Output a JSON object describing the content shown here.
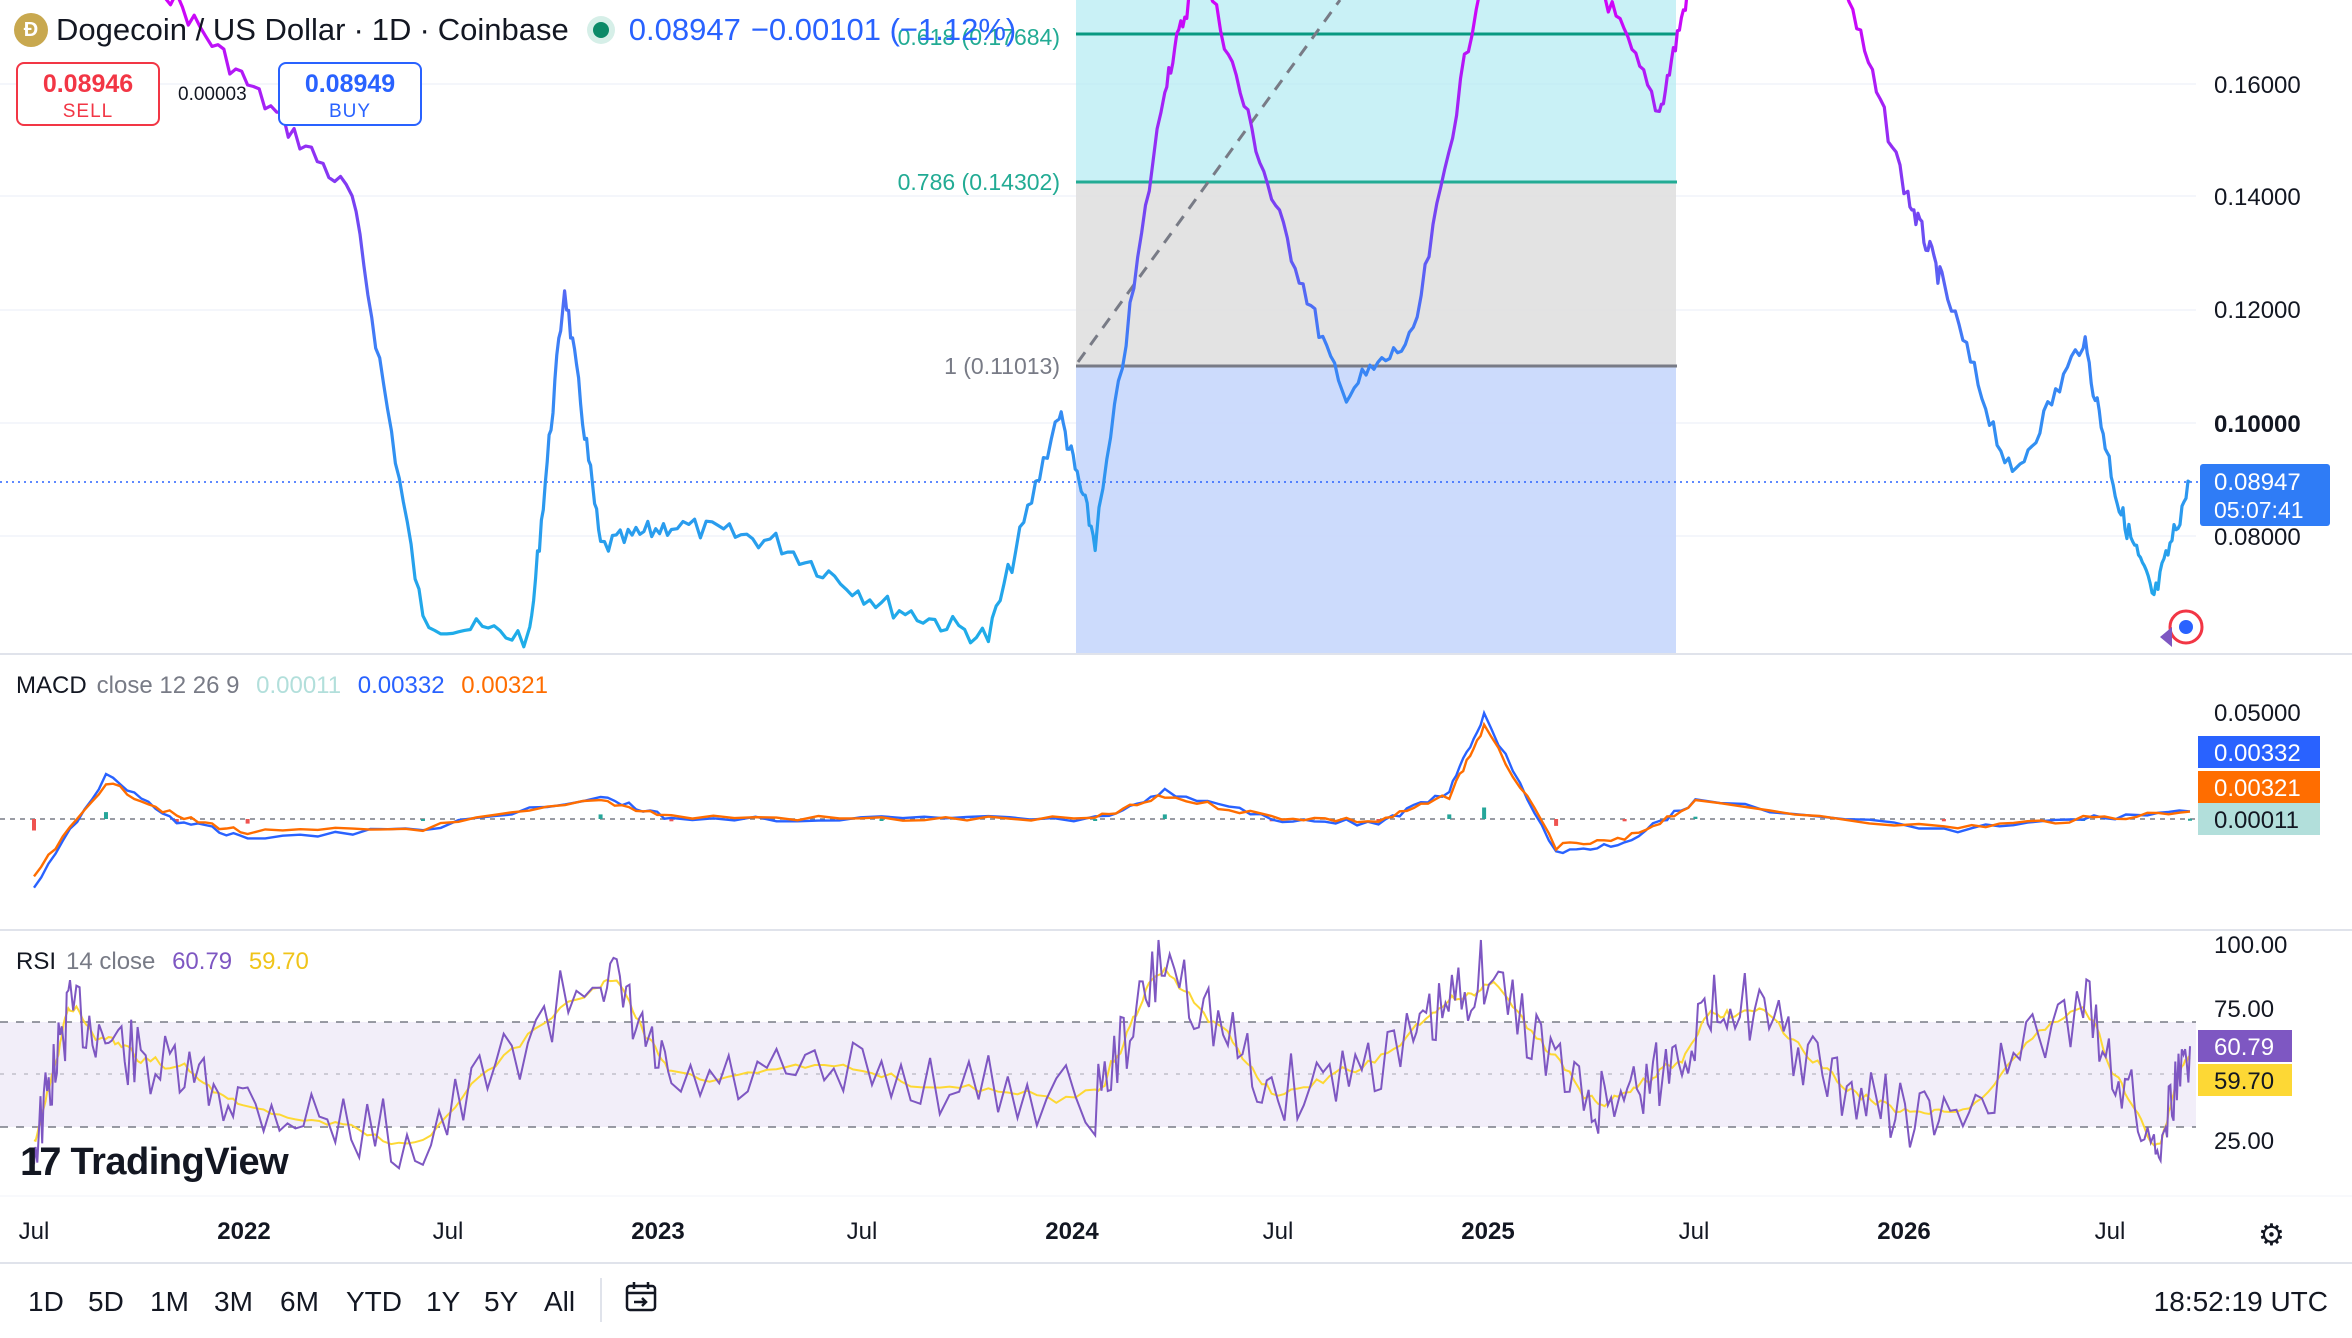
{
  "header": {
    "coin_icon": "dogecoin-icon",
    "symbol": "Dogecoin / US Dollar",
    "interval": "1D",
    "exchange": "Coinbase",
    "market_status": "open",
    "last_price": "0.08947",
    "change": "−0.00101 (−1.12%)"
  },
  "trade": {
    "sell_price": "0.08946",
    "sell_label": "SELL",
    "buy_price": "0.08949",
    "buy_label": "BUY",
    "spread": "0.00003"
  },
  "colors": {
    "price_line": "#2962ff",
    "macd": "#2962ff",
    "signal": "#ff6d00",
    "hist_up": "#26a69a",
    "hist_down": "#ef5350",
    "rsi": "#7e57c2",
    "rsi_ma": "#fdd835",
    "fib_1": "#787b86",
    "fib_0786": "#26a69a",
    "fib_0618": "#089981"
  },
  "price_axis": {
    "ticks": [
      "0.16000",
      "0.14000",
      "0.12000",
      "0.10000",
      "0.08000"
    ],
    "current_price": "0.08947",
    "countdown": "05:07:41"
  },
  "fibonacci": [
    {
      "label": "0.618 (0.17684)",
      "level": 0.17684
    },
    {
      "label": "0.786 (0.14302)",
      "level": 0.14302
    },
    {
      "label": "1 (0.11013)",
      "level": 0.11013
    }
  ],
  "macd": {
    "title": "MACD",
    "params": "close 12 26 9",
    "hist_value": "0.00011",
    "macd_value": "0.00332",
    "signal_value": "0.00321",
    "axis_tick": "0.05000"
  },
  "rsi": {
    "title": "RSI",
    "params": "14 close",
    "rsi_value": "60.79",
    "ma_value": "59.70",
    "axis_ticks": [
      "100.00",
      "75.00",
      "25.00"
    ]
  },
  "time_axis": {
    "ticks": [
      {
        "label": "Jul",
        "bold": false
      },
      {
        "label": "2022",
        "bold": true
      },
      {
        "label": "Jul",
        "bold": false
      },
      {
        "label": "2023",
        "bold": true
      },
      {
        "label": "Jul",
        "bold": false
      },
      {
        "label": "2024",
        "bold": true
      },
      {
        "label": "Jul",
        "bold": false
      },
      {
        "label": "2025",
        "bold": true
      },
      {
        "label": "Jul",
        "bold": false
      },
      {
        "label": "2026",
        "bold": true
      },
      {
        "label": "Jul",
        "bold": false
      }
    ]
  },
  "ranges": [
    "1D",
    "5D",
    "1M",
    "3M",
    "6M",
    "YTD",
    "1Y",
    "5Y",
    "All"
  ],
  "clock": "18:52:19 UTC",
  "branding": "TradingView",
  "chart_data": {
    "type": "line",
    "price_series": {
      "name": "Dogecoin / US Dollar",
      "x": [
        "2021-07",
        "2021-10",
        "2022-01",
        "2022-04",
        "2022-06",
        "2022-09",
        "2022-10",
        "2022-11",
        "2023-01",
        "2023-04",
        "2023-07",
        "2023-10",
        "2023-12",
        "2024-01",
        "2024-03",
        "2024-04",
        "2024-06",
        "2024-08",
        "2024-10",
        "2024-12",
        "2025-03",
        "2025-05",
        "2025-06",
        "2025-08",
        "2025-10",
        "2025-12",
        "2026-01",
        "2026-03",
        "2026-05",
        "2026-06",
        "2026-07",
        "2026-08"
      ],
      "y": [
        0.22,
        0.24,
        0.16,
        0.14,
        0.065,
        0.062,
        0.124,
        0.078,
        0.082,
        0.079,
        0.068,
        0.062,
        0.102,
        0.079,
        0.16,
        0.19,
        0.14,
        0.105,
        0.115,
        0.35,
        0.19,
        0.155,
        0.2,
        0.22,
        0.19,
        0.14,
        0.124,
        0.09,
        0.115,
        0.085,
        0.069,
        0.08947
      ]
    },
    "macd_series": [
      {
        "name": "MACD",
        "x": [
          "2021-07",
          "2021-09",
          "2021-11",
          "2022-01",
          "2022-06",
          "2022-11",
          "2023-01",
          "2023-07",
          "2024-01",
          "2024-03",
          "2024-06",
          "2024-09",
          "2024-11",
          "2024-12",
          "2025-02",
          "2025-04",
          "2025-06",
          "2026-01",
          "2026-05",
          "2026-08"
        ],
        "y": [
          -0.03,
          0.019,
          -0.001,
          -0.008,
          -0.004,
          0.01,
          0.0,
          0.0,
          0.0,
          0.012,
          0.0,
          -0.002,
          0.012,
          0.045,
          -0.015,
          -0.01,
          0.008,
          -0.005,
          0.0,
          0.00332
        ]
      },
      {
        "name": "Signal",
        "x": [
          "2021-07",
          "2021-09",
          "2021-11",
          "2022-01",
          "2022-06",
          "2022-11",
          "2023-01",
          "2023-07",
          "2024-01",
          "2024-03",
          "2024-06",
          "2024-09",
          "2024-11",
          "2024-12",
          "2025-02",
          "2025-04",
          "2025-06",
          "2026-01",
          "2026-05",
          "2026-08"
        ],
        "y": [
          -0.025,
          0.016,
          0.001,
          -0.006,
          -0.004,
          0.008,
          0.001,
          0.0,
          0.0,
          0.01,
          0.001,
          -0.001,
          0.01,
          0.04,
          -0.012,
          -0.009,
          0.007,
          -0.004,
          0.0,
          0.00321
        ]
      }
    ],
    "rsi_series": {
      "name": "RSI",
      "bands": [
        70,
        50,
        30
      ],
      "ylim": [
        0,
        100
      ],
      "x": [
        "2021-07",
        "2021-08",
        "2021-10",
        "2022-01",
        "2022-06",
        "2022-11",
        "2023-01",
        "2023-07",
        "2024-01",
        "2024-03",
        "2024-06",
        "2024-10",
        "2024-12",
        "2025-03",
        "2025-05",
        "2025-07",
        "2025-10",
        "2026-01",
        "2026-05",
        "2026-07",
        "2026-08"
      ],
      "y": [
        22,
        75,
        55,
        40,
        24,
        92,
        45,
        50,
        40,
        95,
        42,
        62,
        90,
        38,
        50,
        82,
        45,
        30,
        78,
        22,
        60.79
      ]
    }
  }
}
